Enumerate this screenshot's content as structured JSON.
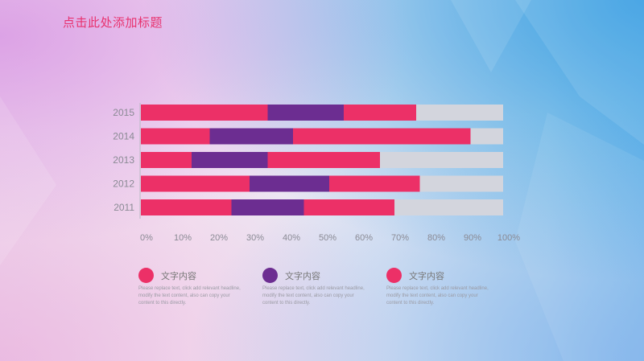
{
  "slide": {
    "title": "点击此处添加标题"
  },
  "chart_data": {
    "type": "bar",
    "orientation": "horizontal",
    "stacked": true,
    "categories": [
      "2015",
      "2014",
      "2013",
      "2012",
      "2011"
    ],
    "series": [
      {
        "color": "#ec3067",
        "values": [
          35,
          19,
          14,
          30,
          25
        ]
      },
      {
        "color": "#6c2d91",
        "values": [
          21,
          23,
          21,
          22,
          20
        ]
      },
      {
        "color": "#ec3067",
        "values": [
          20,
          49,
          31,
          25,
          25
        ]
      },
      {
        "color": "#d3d5dd",
        "values": [
          24,
          9,
          34,
          23,
          30
        ]
      }
    ],
    "xlim": [
      0,
      100
    ],
    "xticks": [
      "0%",
      "10%",
      "20%",
      "30%",
      "40%",
      "50%",
      "60%",
      "70%",
      "80%",
      "90%",
      "100%"
    ],
    "grid": false
  },
  "legend": [
    {
      "color": "#ec3067",
      "label": "文字内容",
      "text": "Please replace text, click add relevant headline, modify the text content, also can copy your content to this directly."
    },
    {
      "color": "#6c2d91",
      "label": "文字内容",
      "text": "Please replace text, click add relevant headline, modify the text content, also can copy your content to this directly."
    },
    {
      "color": "#ec3067",
      "label": "文字内容",
      "text": "Please replace text, click add relevant headline, modify the text content, also can copy your content to this directly."
    }
  ]
}
